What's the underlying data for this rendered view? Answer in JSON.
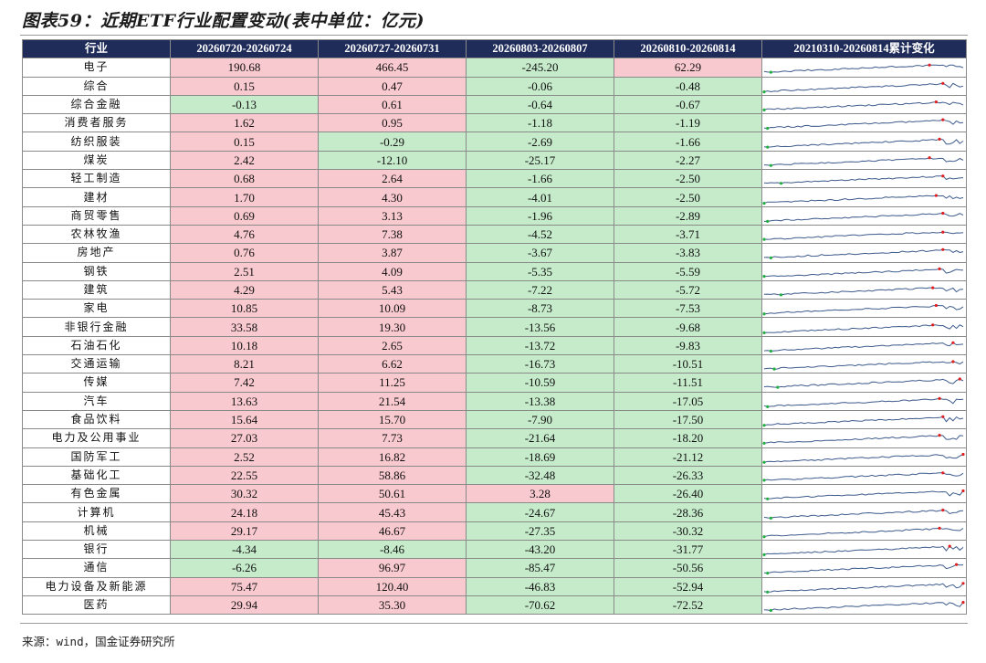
{
  "title": "图表59：近期ETF行业配置变动(表中单位：亿元)",
  "source": "来源：wind，国金证券研究所",
  "colors": {
    "header_bg": "#1f2c5a",
    "positive_bg": "#f8c9ce",
    "negative_bg": "#c6ebcb",
    "line": "#3c5a8c",
    "max_marker": "#e02020",
    "min_marker": "#20b040"
  },
  "headers": [
    "行业",
    "20260720-20260724",
    "20260727-20260731",
    "20260803-20260807",
    "20260810-20260814",
    "20210310-20260814累计变化"
  ],
  "rows": [
    {
      "name": "电子",
      "v": [
        "190.68",
        "466.45",
        "-245.20",
        "62.29"
      ]
    },
    {
      "name": "综合",
      "v": [
        "0.15",
        "0.47",
        "-0.06",
        "-0.48"
      ]
    },
    {
      "name": "综合金融",
      "v": [
        "-0.13",
        "0.61",
        "-0.64",
        "-0.67"
      ]
    },
    {
      "name": "消费者服务",
      "v": [
        "1.62",
        "0.95",
        "-1.18",
        "-1.19"
      ]
    },
    {
      "name": "纺织服装",
      "v": [
        "0.15",
        "-0.29",
        "-2.69",
        "-1.66"
      ]
    },
    {
      "name": "煤炭",
      "v": [
        "2.42",
        "-12.10",
        "-25.17",
        "-2.27"
      ]
    },
    {
      "name": "轻工制造",
      "v": [
        "0.68",
        "2.64",
        "-1.66",
        "-2.50"
      ]
    },
    {
      "name": "建材",
      "v": [
        "1.70",
        "4.30",
        "-4.01",
        "-2.50"
      ]
    },
    {
      "name": "商贸零售",
      "v": [
        "0.69",
        "3.13",
        "-1.96",
        "-2.89"
      ]
    },
    {
      "name": "农林牧渔",
      "v": [
        "4.76",
        "7.38",
        "-4.52",
        "-3.71"
      ]
    },
    {
      "name": "房地产",
      "v": [
        "0.76",
        "3.87",
        "-3.67",
        "-3.83"
      ]
    },
    {
      "name": "钢铁",
      "v": [
        "2.51",
        "4.09",
        "-5.35",
        "-5.59"
      ]
    },
    {
      "name": "建筑",
      "v": [
        "4.29",
        "5.43",
        "-7.22",
        "-5.72"
      ]
    },
    {
      "name": "家电",
      "v": [
        "10.85",
        "10.09",
        "-8.73",
        "-7.53"
      ]
    },
    {
      "name": "非银行金融",
      "v": [
        "33.58",
        "19.30",
        "-13.56",
        "-9.68"
      ]
    },
    {
      "name": "石油石化",
      "v": [
        "10.18",
        "2.65",
        "-13.72",
        "-9.83"
      ]
    },
    {
      "name": "交通运输",
      "v": [
        "8.21",
        "6.62",
        "-16.73",
        "-10.51"
      ]
    },
    {
      "name": "传媒",
      "v": [
        "7.42",
        "11.25",
        "-10.59",
        "-11.51"
      ]
    },
    {
      "name": "汽车",
      "v": [
        "13.63",
        "21.54",
        "-13.38",
        "-17.05"
      ]
    },
    {
      "name": "食品饮料",
      "v": [
        "15.64",
        "15.70",
        "-7.90",
        "-17.50"
      ]
    },
    {
      "name": "电力及公用事业",
      "v": [
        "27.03",
        "7.73",
        "-21.64",
        "-18.20"
      ]
    },
    {
      "name": "国防军工",
      "v": [
        "2.52",
        "16.82",
        "-18.69",
        "-21.12"
      ]
    },
    {
      "name": "基础化工",
      "v": [
        "22.55",
        "58.86",
        "-32.48",
        "-26.33"
      ]
    },
    {
      "name": "有色金属",
      "v": [
        "30.32",
        "50.61",
        "3.28",
        "-26.40"
      ]
    },
    {
      "name": "计算机",
      "v": [
        "24.18",
        "45.43",
        "-24.67",
        "-28.36"
      ]
    },
    {
      "name": "机械",
      "v": [
        "29.17",
        "46.67",
        "-27.35",
        "-30.32"
      ]
    },
    {
      "name": "银行",
      "v": [
        "-4.34",
        "-8.46",
        "-43.20",
        "-31.77"
      ]
    },
    {
      "name": "通信",
      "v": [
        "-6.26",
        "96.97",
        "-85.47",
        "-50.56"
      ]
    },
    {
      "name": "电力设备及新能源",
      "v": [
        "75.47",
        "120.40",
        "-46.83",
        "-52.94"
      ]
    },
    {
      "name": "医药",
      "v": [
        "29.94",
        "35.30",
        "-70.62",
        "-72.52"
      ]
    }
  ]
}
